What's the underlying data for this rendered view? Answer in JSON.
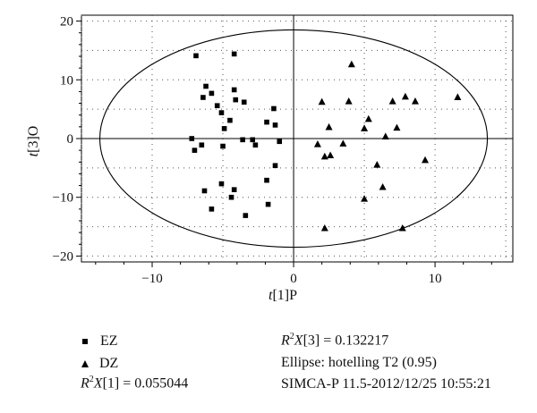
{
  "chart_data": {
    "type": "scatter",
    "xlabel_prefix": "t",
    "xlabel_suffix": "[1]P",
    "ylabel_prefix": "t",
    "ylabel_suffix": "[3]O",
    "xlim": [
      -15,
      15.5
    ],
    "ylim": [
      -21,
      21
    ],
    "xticks": [
      -10,
      0,
      10
    ],
    "yticks": [
      -20,
      -10,
      0,
      10,
      20
    ],
    "grid": true,
    "ellipse": {
      "cx": 0,
      "cy": 0,
      "rx": 13.7,
      "ry": 18.5
    },
    "series": [
      {
        "name": "EZ",
        "marker": "square",
        "points": [
          [
            -6.9,
            14.1
          ],
          [
            -4.2,
            14.4
          ],
          [
            -6.2,
            8.9
          ],
          [
            -5.8,
            7.7
          ],
          [
            -6.4,
            7.0
          ],
          [
            -4.2,
            8.3
          ],
          [
            -4.1,
            6.6
          ],
          [
            -5.4,
            5.6
          ],
          [
            -5.1,
            4.4
          ],
          [
            -3.5,
            6.2
          ],
          [
            -1.4,
            5.1
          ],
          [
            -4.5,
            3.1
          ],
          [
            -1.9,
            2.8
          ],
          [
            -1.3,
            2.3
          ],
          [
            -4.9,
            1.7
          ],
          [
            -7.2,
            0.0
          ],
          [
            -6.5,
            -1.1
          ],
          [
            -7.0,
            -2.0
          ],
          [
            -5.0,
            -1.3
          ],
          [
            -3.6,
            -0.2
          ],
          [
            -2.9,
            -0.2
          ],
          [
            -2.7,
            -1.1
          ],
          [
            -1.0,
            -0.5
          ],
          [
            -1.3,
            -4.6
          ],
          [
            -1.9,
            -7.1
          ],
          [
            -4.2,
            -8.7
          ],
          [
            -5.1,
            -7.7
          ],
          [
            -6.3,
            -8.9
          ],
          [
            -4.4,
            -10.0
          ],
          [
            -1.8,
            -11.2
          ],
          [
            -5.8,
            -12.0
          ],
          [
            -3.4,
            -13.1
          ]
        ]
      },
      {
        "name": "DZ",
        "marker": "triangle",
        "points": [
          [
            4.1,
            12.6
          ],
          [
            11.6,
            7.0
          ],
          [
            7.9,
            7.1
          ],
          [
            8.6,
            6.3
          ],
          [
            2.0,
            6.2
          ],
          [
            3.9,
            6.3
          ],
          [
            7.0,
            6.3
          ],
          [
            5.3,
            3.3
          ],
          [
            5.0,
            1.7
          ],
          [
            2.5,
            1.9
          ],
          [
            7.3,
            1.8
          ],
          [
            6.5,
            0.3
          ],
          [
            1.7,
            -1.0
          ],
          [
            3.5,
            -0.9
          ],
          [
            2.2,
            -3.1
          ],
          [
            2.6,
            -2.9
          ],
          [
            5.9,
            -4.5
          ],
          [
            9.3,
            -3.7
          ],
          [
            6.3,
            -8.3
          ],
          [
            5.0,
            -10.3
          ],
          [
            2.2,
            -15.3
          ],
          [
            7.7,
            -15.3
          ]
        ]
      }
    ],
    "annotations": {
      "r2x1": "= 0.055044",
      "r2x3": "= 0.132217",
      "ellipse_note": "Ellipse: hotelling T2 (0.95)",
      "software": "SIMCA-P 11.5-2012/12/25 10:55:21"
    }
  }
}
